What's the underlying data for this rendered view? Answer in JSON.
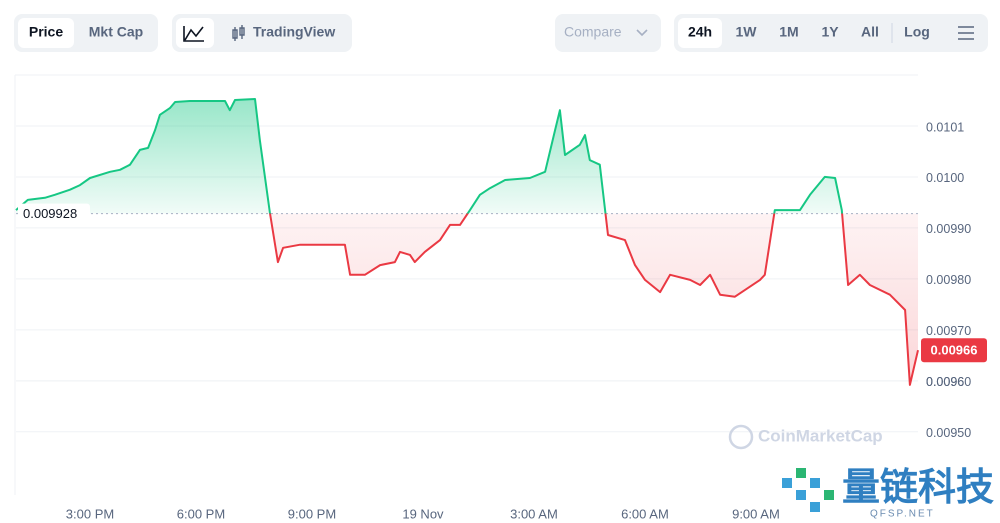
{
  "toolbar": {
    "view_tabs": [
      "Price",
      "Mkt Cap"
    ],
    "tradingview": "TradingView",
    "compare": "Compare",
    "ranges": [
      "24h",
      "1W",
      "1M",
      "1Y",
      "All"
    ],
    "log": "Log"
  },
  "watermarks": {
    "coinmarketcap": "CoinMarketCap",
    "brand": "量链科技",
    "brand_url": "QFSP.NET"
  },
  "chart_data": {
    "type": "line",
    "x": [
      0,
      0.32,
      0.78,
      1.05,
      1.46,
      1.73,
      2.0,
      2.54,
      2.81,
      3.08,
      3.35,
      3.57,
      3.76,
      3.89,
      4.16,
      4.3,
      4.7,
      5.65,
      5.78,
      5.92,
      6.46,
      6.59,
      6.86,
      7.08,
      7.22,
      7.68,
      8.89,
      9.03,
      9.43,
      9.84,
      10.24,
      10.38,
      10.65,
      10.78,
      11.05,
      11.46,
      11.73,
      12.0,
      12.27,
      12.54,
      12.81,
      13.22,
      13.89,
      14.3,
      14.57,
      14.7,
      14.84,
      15.24,
      15.38,
      15.51,
      15.78,
      16.0,
      16.46,
      16.73,
      17.0,
      17.41,
      17.68,
      18.22,
      18.49,
      18.76,
      19.03,
      19.43,
      20.11,
      20.24,
      20.51,
      21.19,
      21.46,
      21.86,
      22.14,
      22.32,
      22.49,
      22.81,
      23.08,
      23.62,
      24.03,
      24.16,
      24.38
    ],
    "values": [
      0.009935,
      0.009955,
      0.009959,
      0.009965,
      0.009975,
      0.009984,
      0.009998,
      0.01001,
      0.010014,
      0.010024,
      0.010053,
      0.010057,
      0.010092,
      0.010122,
      0.010135,
      0.010147,
      0.010149,
      0.010149,
      0.010131,
      0.010151,
      0.010153,
      0.010073,
      0.009931,
      0.009833,
      0.009861,
      0.009867,
      0.009867,
      0.009808,
      0.009808,
      0.009827,
      0.009833,
      0.009853,
      0.009847,
      0.009833,
      0.009853,
      0.009876,
      0.009906,
      0.009906,
      0.009935,
      0.009965,
      0.009978,
      0.009994,
      0.009998,
      0.01001,
      0.010092,
      0.010131,
      0.010043,
      0.010063,
      0.010082,
      0.010033,
      0.010024,
      0.009886,
      0.009876,
      0.009827,
      0.009798,
      0.009774,
      0.009808,
      0.009798,
      0.009788,
      0.009808,
      0.009769,
      0.009765,
      0.009798,
      0.009808,
      0.009935,
      0.009935,
      0.009965,
      0.01,
      0.009998,
      0.009935,
      0.009788,
      0.009808,
      0.009788,
      0.009769,
      0.009739,
      0.009592,
      0.00966
    ],
    "baseline": 0.009928,
    "color_up": "#16c784",
    "color_down": "#ea3943",
    "xlim": [
      0,
      24.38
    ],
    "xticks": [
      {
        "value": 2,
        "label": "3:00 PM"
      },
      {
        "value": 5,
        "label": "6:00 PM"
      },
      {
        "value": 8,
        "label": "9:00 PM"
      },
      {
        "value": 11,
        "label": "19 Nov"
      },
      {
        "value": 14,
        "label": "3:00 AM"
      },
      {
        "value": 17,
        "label": "6:00 AM"
      },
      {
        "value": 20,
        "label": "9:00 AM"
      }
    ],
    "ylim": [
      0.009376,
      0.0102
    ],
    "yticks": [
      {
        "value": 0.0095,
        "label": "0.00950"
      },
      0.0096,
      {
        "value": 0.0096,
        "label": "0.00960"
      },
      {
        "value": 0.0097,
        "label": "0.00970"
      },
      {
        "value": 0.0098,
        "label": "0.00980"
      },
      {
        "value": 0.0099,
        "label": "0.00990"
      },
      {
        "value": 0.01,
        "label": "0.0100"
      },
      0.0101
    ],
    "grid": true
  }
}
